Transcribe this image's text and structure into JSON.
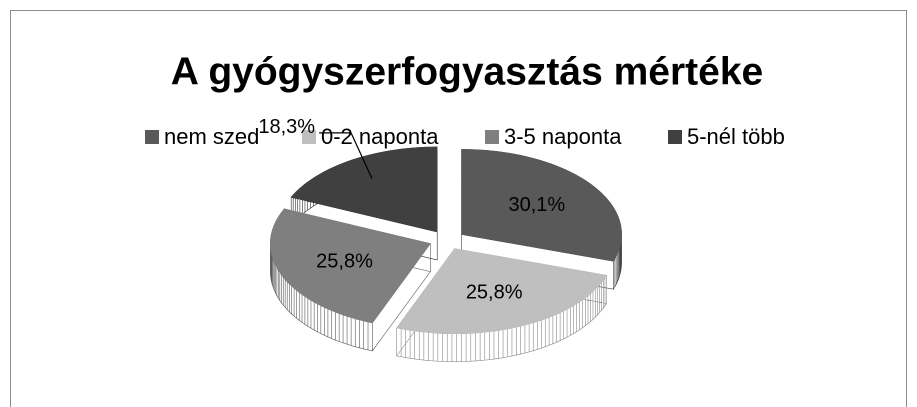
{
  "chart_data": {
    "type": "pie",
    "title": "A gyógyszerfogyasztás mértéke",
    "categories": [
      "nem szed",
      "0-2 naponta",
      "3-5 naponta",
      "5-nél több"
    ],
    "values": [
      30.1,
      25.8,
      25.8,
      18.3
    ],
    "value_labels": [
      "30,1%",
      "25,8%",
      "25,8%",
      "18,3%"
    ],
    "colors": [
      "#595959",
      "#bfbfbf",
      "#7f7f7f",
      "#404040"
    ],
    "legend": "top"
  }
}
